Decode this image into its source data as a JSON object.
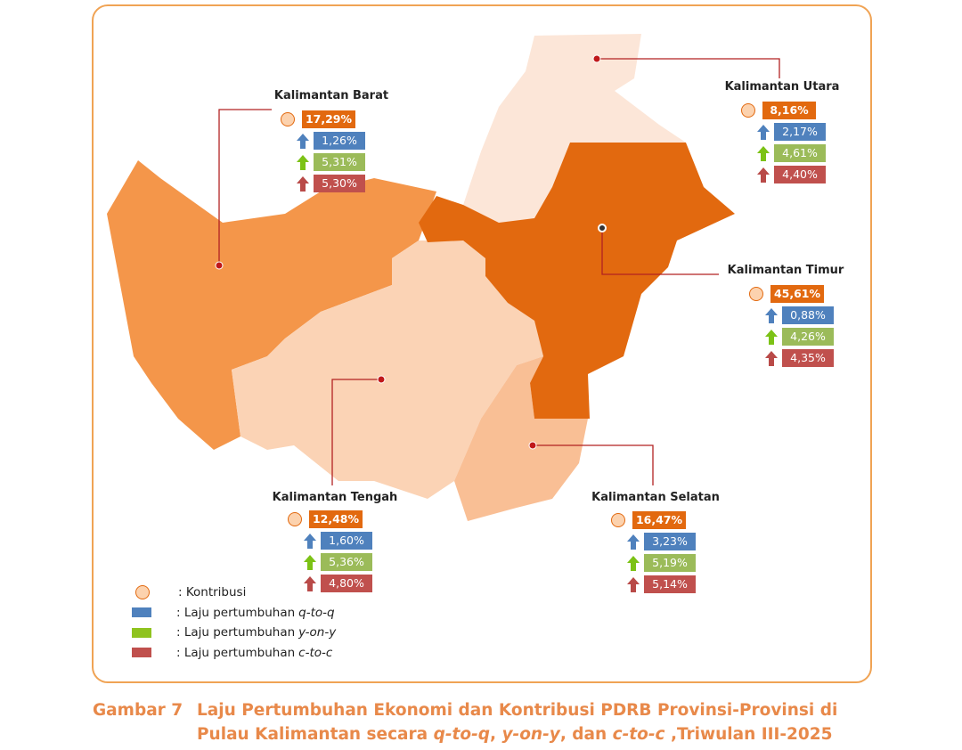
{
  "map": {
    "provinces": [
      {
        "name": "Kalimantan Barat",
        "kontribusi": "17,29%",
        "q_to_q": "1,26%",
        "y_on_y": "5,31%",
        "c_to_c": "5,30%"
      },
      {
        "name": "Kalimantan Utara",
        "kontribusi": "8,16%",
        "q_to_q": "2,17%",
        "y_on_y": "4,61%",
        "c_to_c": "4,40%"
      },
      {
        "name": "Kalimantan Timur",
        "kontribusi": "45,61%",
        "q_to_q": "0,88%",
        "y_on_y": "4,26%",
        "c_to_c": "4,35%"
      },
      {
        "name": "Kalimantan Tengah",
        "kontribusi": "12,48%",
        "q_to_q": "1,60%",
        "y_on_y": "5,36%",
        "c_to_c": "4,80%"
      },
      {
        "name": "Kalimantan Selatan",
        "kontribusi": "16,47%",
        "q_to_q": "3,23%",
        "y_on_y": "5,19%",
        "c_to_c": "5,14%"
      }
    ],
    "legend": [
      {
        "text": ": Kontribusi"
      },
      {
        "text": ": Laju pertumbuhan",
        "term": "q-to-q"
      },
      {
        "text": ": Laju pertumbuhan",
        "term": "y-on-y"
      },
      {
        "text": ": Laju pertumbuhan",
        "term": "c-to-c"
      }
    ]
  },
  "caption": {
    "label": "Gambar 7",
    "segments": [
      {
        "text": "Laju Pertumbuhan Ekonomi dan Kontribusi PDRB Provinsi-Provinsi di Pulau Kalimantan secara ",
        "italic": false
      },
      {
        "text": "q-to-q",
        "italic": true
      },
      {
        "text": ", ",
        "italic": false
      },
      {
        "text": "y-on-y",
        "italic": true
      },
      {
        "text": ", dan ",
        "italic": false
      },
      {
        "text": "c-to-c",
        "italic": true
      },
      {
        "text": " ,Triwulan III-2025",
        "italic": false
      }
    ]
  }
}
